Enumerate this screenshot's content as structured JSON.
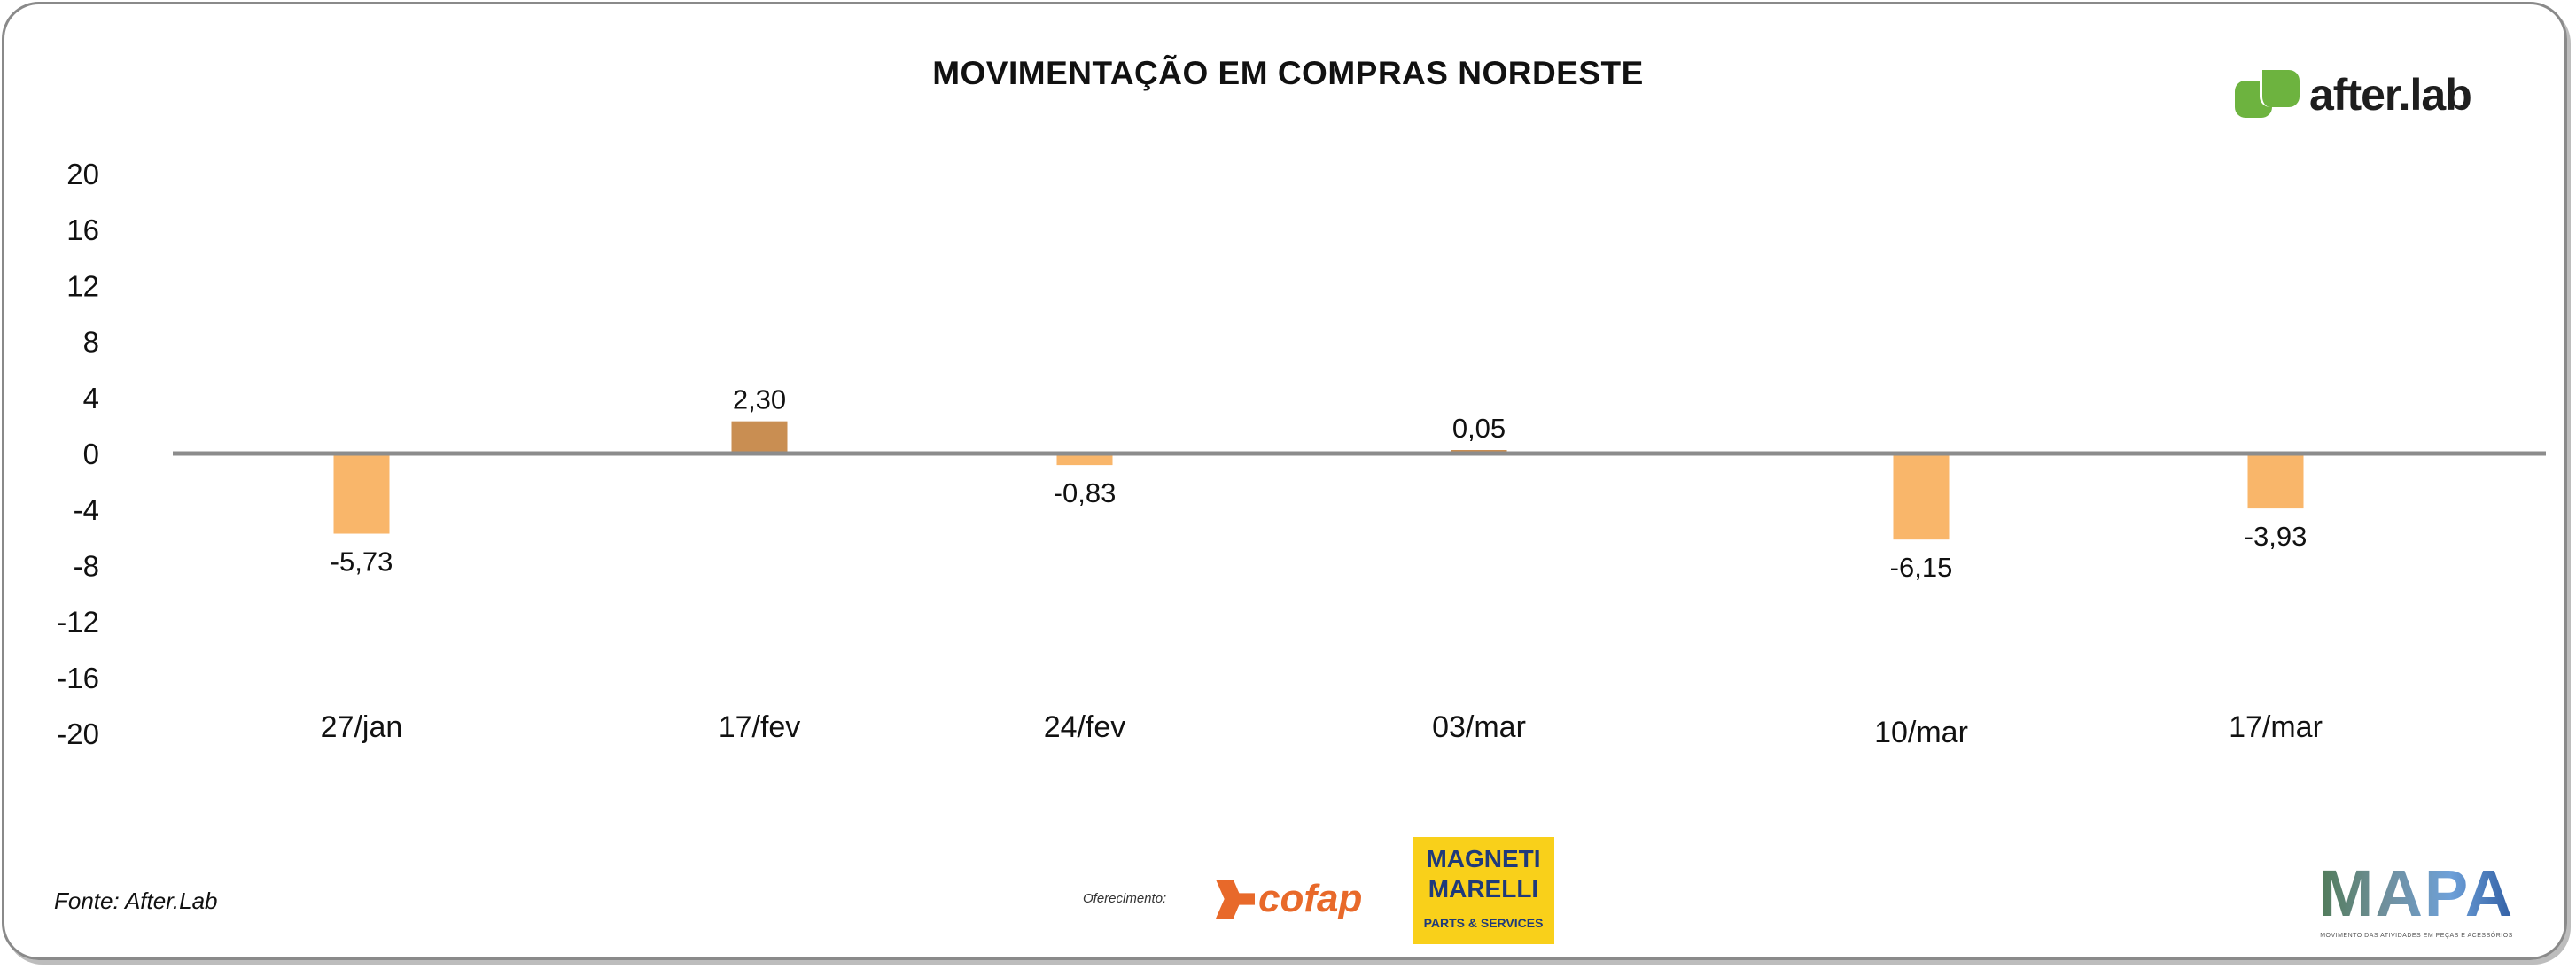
{
  "chart_data": {
    "type": "bar",
    "title": "MOVIMENTAÇÃO EM COMPRAS NORDESTE",
    "categories": [
      "27/jan",
      "17/fev",
      "24/fev",
      "03/mar",
      "10/mar",
      "17/mar"
    ],
    "values": [
      -5.73,
      2.3,
      -0.83,
      0.05,
      -6.15,
      -3.93
    ],
    "data_labels": [
      "-5,73",
      "2,30",
      "-0,83",
      "0,05",
      "-6,15",
      "-3,93"
    ],
    "ylim": [
      -20,
      20
    ],
    "yticks": [
      20,
      16,
      12,
      8,
      4,
      0,
      -4,
      -8,
      -12,
      -16,
      -20
    ],
    "xlabel": "",
    "ylabel": "",
    "grid": false,
    "colors": {
      "positive": "#C98E52",
      "negative": "#F9B66A",
      "zero_line": "#8C8C8C"
    }
  },
  "footer": {
    "source": "Fonte: After.Lab",
    "sponsor_label": "Oferecimento:",
    "sponsor1": "cofap",
    "sponsor2_line1": "MAGNETI",
    "sponsor2_line2": "MARELLI",
    "sponsor2_sub": "PARTS & SERVICES",
    "mapa": "MAPA",
    "mapa_sub": "MOVIMENTO DAS ATIVIDADES EM PEÇAS E ACESSÓRIOS"
  },
  "brand": {
    "logo_text": "after.lab",
    "color": "#6DB33F"
  }
}
